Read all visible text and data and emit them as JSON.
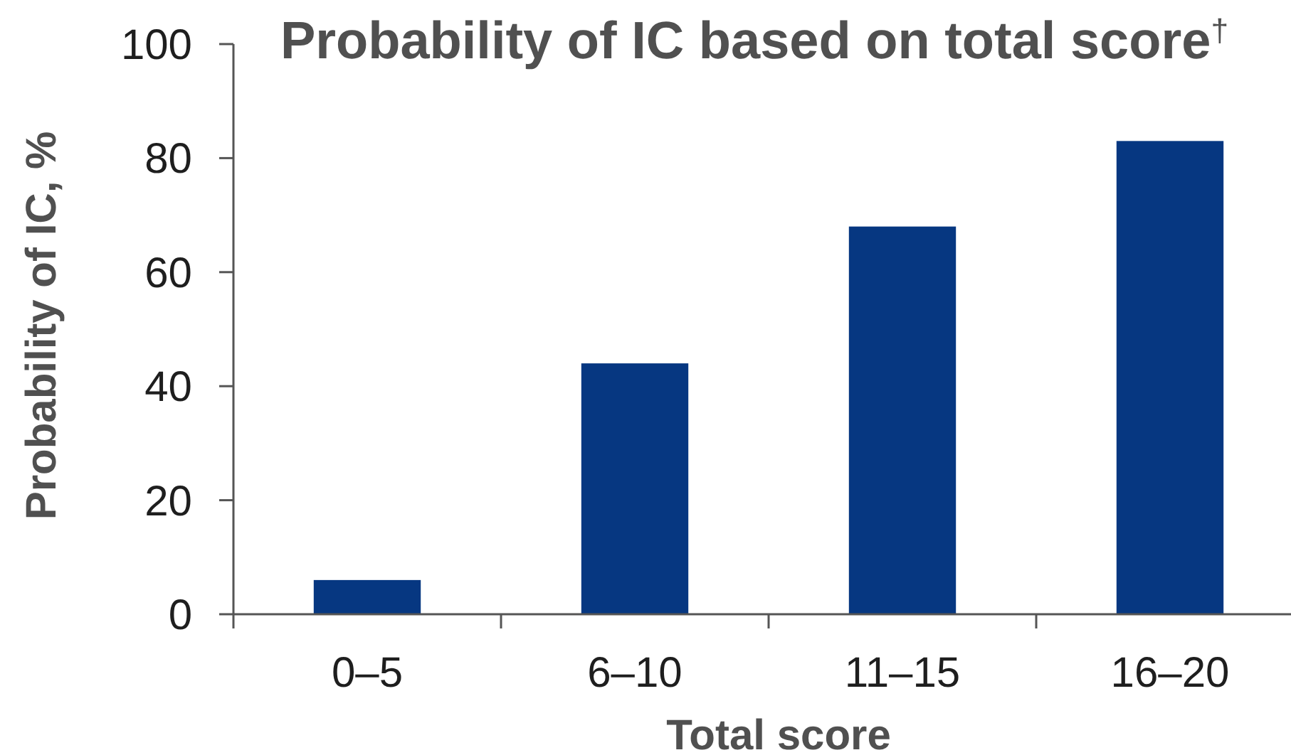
{
  "chart_data": {
    "type": "bar",
    "title": "Probability of IC based on total score$^{†}$",
    "xlabel": "Total score",
    "ylabel": "Probability of IC, %",
    "categories": [
      "0–5",
      "6–10",
      "11–15",
      "16–20"
    ],
    "values": [
      6,
      44,
      68,
      83
    ],
    "color": "#063781",
    "ylim": [
      0,
      100
    ],
    "yticks": [
      0,
      20,
      40,
      60,
      80,
      100
    ]
  }
}
